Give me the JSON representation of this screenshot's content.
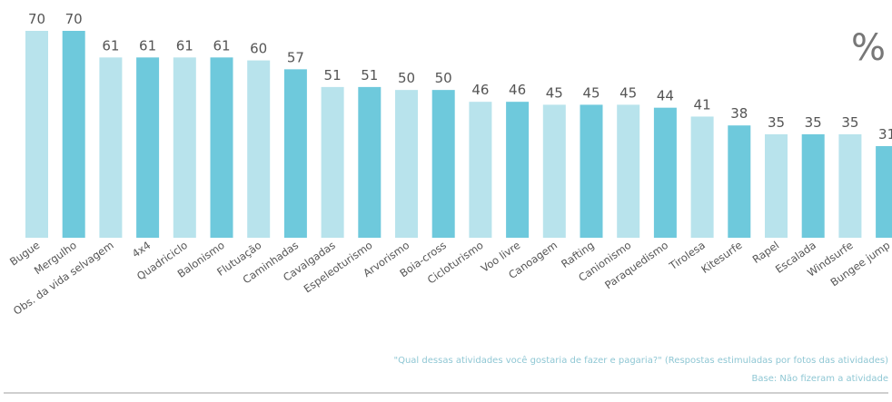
{
  "chart_data": {
    "type": "bar",
    "unit": "%",
    "categories": [
      "Bugue",
      "Mergulho",
      "Obs. da vida selvagem",
      "4x4",
      "Quadriciclo",
      "Balonismo",
      "Flutuação",
      "Caminhadas",
      "Cavalgadas",
      "Espeleoturismo",
      "Arvorismo",
      "Boia-cross",
      "Cicloturismo",
      "Voo livre",
      "Canoagem",
      "Rafting",
      "Canionismo",
      "Paraquedismo",
      "Tirolesa",
      "Kitesurfe",
      "Rapel",
      "Escalada",
      "Windsurfe",
      "Bungee jump"
    ],
    "values": [
      70,
      70,
      61,
      61,
      61,
      61,
      60,
      57,
      51,
      51,
      50,
      50,
      46,
      46,
      45,
      45,
      45,
      44,
      41,
      38,
      35,
      35,
      35,
      31
    ],
    "ylim": [
      0,
      70
    ],
    "grid": false,
    "colors": [
      "#b8e3ec",
      "#6ec9dc"
    ]
  },
  "footnotes": {
    "question": "\"Qual dessas atividades você gostaria de fazer e pagaria?\" (Respostas estimuladas por fotos das atividades)",
    "base": "Base: Não fizeram a atividade"
  }
}
